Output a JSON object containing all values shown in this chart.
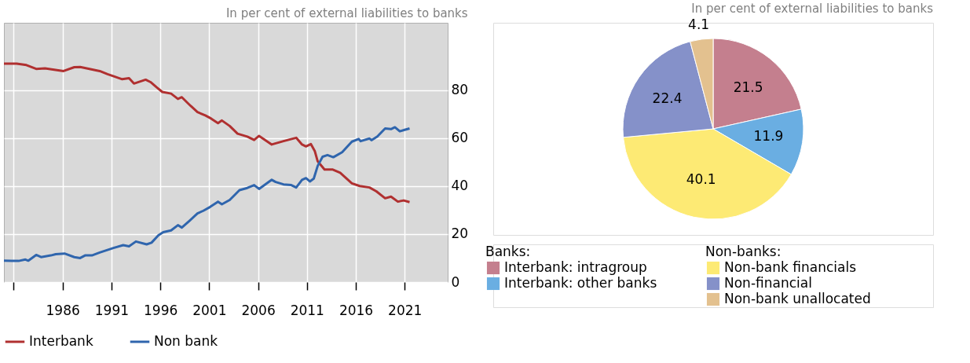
{
  "chart_data": [
    {
      "type": "line",
      "subtitle": "In per cent of external liabilities to banks",
      "xlim": [
        1980,
        2025.4
      ],
      "ylim": [
        0,
        108
      ],
      "xticks": [
        {
          "value": 1981,
          "label": null
        },
        1986,
        1991,
        1996,
        2001,
        2006,
        2011,
        2016,
        2021
      ],
      "yticks": [
        0,
        20,
        40,
        60,
        80
      ],
      "grid": true,
      "legend": "bottom",
      "line_style": "solid",
      "marker": "none",
      "series": [
        {
          "name": "Interbank",
          "color": "#b03030",
          "x": [
            1980.0,
            1981.3,
            1982.3,
            1983.3,
            1984.2,
            1986.1,
            1987.2,
            1987.8,
            1989.8,
            1990.6,
            1991.3,
            1992.1,
            1992.8,
            1993.3,
            1994.5,
            1995.0,
            1995.6,
            1996.2,
            1997.1,
            1997.8,
            1998.2,
            1999.1,
            1999.8,
            2000.6,
            2001.2,
            2001.9,
            2002.3,
            2003.1,
            2003.9,
            2004.9,
            2005.6,
            2006.1,
            2007.4,
            2008.6,
            2009.9,
            2010.5,
            2010.9,
            2011.4,
            2011.8,
            2012.1,
            2012.8,
            2013.6,
            2014.4,
            2015.6,
            2016.4,
            2017.4,
            2018.1,
            2019.0,
            2019.6,
            2020.3,
            2020.9,
            2021.5
          ],
          "values": [
            91.0,
            91.0,
            90.4,
            88.8,
            89.0,
            87.9,
            89.5,
            89.6,
            87.9,
            86.6,
            85.6,
            84.5,
            84.9,
            82.7,
            84.3,
            83.3,
            81.2,
            79.2,
            78.5,
            76.3,
            77.0,
            73.4,
            70.8,
            69.4,
            68.1,
            66.2,
            67.3,
            65.0,
            61.8,
            60.6,
            59.2,
            60.9,
            57.3,
            58.7,
            60.1,
            57.3,
            56.5,
            57.5,
            54.6,
            50.3,
            46.9,
            46.9,
            45.5,
            41.1,
            40.0,
            39.4,
            37.8,
            34.9,
            35.6,
            33.5,
            34.0,
            33.3
          ]
        },
        {
          "name": "Non bank",
          "color": "#2f65ad",
          "x": [
            1980.0,
            1980.8,
            1981.5,
            1982.2,
            1982.5,
            1983.3,
            1983.8,
            1984.8,
            1985.3,
            1986.2,
            1987.2,
            1987.8,
            1988.3,
            1989.0,
            1989.8,
            1991.2,
            1992.2,
            1992.8,
            1993.5,
            1994.6,
            1995.1,
            1995.8,
            1996.3,
            1997.1,
            1997.8,
            1998.2,
            1999.0,
            1999.8,
            2000.4,
            2001.1,
            2001.9,
            2002.3,
            2003.1,
            2004.1,
            2004.9,
            2005.6,
            2006.1,
            2007.4,
            2007.8,
            2008.6,
            2009.4,
            2009.9,
            2010.5,
            2010.9,
            2011.3,
            2011.7,
            2012.1,
            2012.6,
            2013.1,
            2013.7,
            2014.6,
            2015.6,
            2016.3,
            2016.5,
            2017.4,
            2017.6,
            2018.2,
            2019.0,
            2019.6,
            2020.0,
            2020.5,
            2021.0,
            2021.5
          ],
          "values": [
            8.9,
            8.8,
            8.8,
            9.4,
            8.9,
            11.3,
            10.4,
            11.1,
            11.6,
            11.9,
            10.4,
            10.0,
            11.1,
            11.1,
            12.3,
            14.2,
            15.4,
            14.9,
            16.9,
            15.7,
            16.4,
            19.5,
            20.8,
            21.5,
            23.7,
            22.7,
            25.6,
            28.6,
            29.7,
            31.3,
            33.5,
            32.4,
            34.2,
            38.3,
            39.2,
            40.4,
            38.8,
            42.6,
            41.7,
            40.7,
            40.4,
            39.4,
            42.6,
            43.3,
            41.9,
            43.1,
            48.4,
            52.2,
            52.9,
            52.0,
            54.1,
            58.5,
            59.6,
            58.7,
            59.8,
            59.1,
            60.6,
            64.0,
            63.7,
            64.5,
            62.8,
            63.4,
            64.0
          ]
        }
      ]
    },
    {
      "type": "pie",
      "subtitle": "In per cent of external liabilities to banks",
      "categories": [
        "Interbank: intragroup",
        "Interbank: other banks",
        "Non-bank financials",
        "Non-financial",
        "Non-bank unallocated"
      ],
      "values": [
        21.5,
        11.9,
        40.1,
        22.4,
        4.1
      ],
      "colors": [
        "#c47f8e",
        "#6aaee2",
        "#fdea74",
        "#8591c9",
        "#e3c18f"
      ],
      "data_labels": true,
      "legend": "bottom",
      "annotations": [
        "Banks:",
        "Non-banks:"
      ]
    }
  ]
}
